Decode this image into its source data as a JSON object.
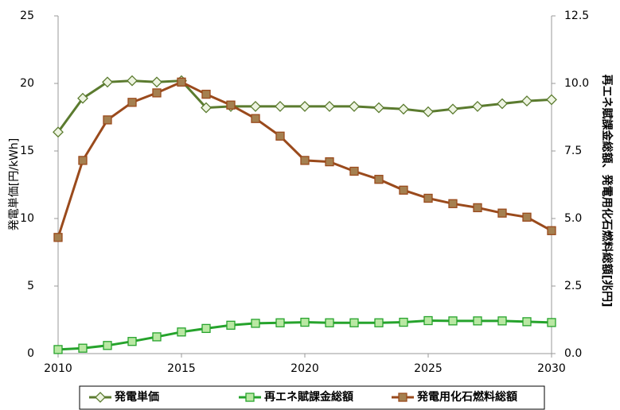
{
  "chart_data": {
    "type": "line",
    "x": [
      2010,
      2011,
      2012,
      2013,
      2014,
      2015,
      2016,
      2017,
      2018,
      2019,
      2020,
      2021,
      2022,
      2023,
      2024,
      2025,
      2026,
      2027,
      2028,
      2029,
      2030
    ],
    "xlim": [
      2010,
      2030
    ],
    "xticks": [
      2010,
      2015,
      2020,
      2025,
      2030
    ],
    "ylim": [
      0,
      25
    ],
    "yticks": [
      0,
      5,
      10,
      15,
      20,
      25
    ],
    "y2lim": [
      0,
      12.5
    ],
    "y2ticks": [
      {
        "value": 0,
        "label": "0.0"
      },
      2.5,
      {
        "value": 5,
        "label": "5.0"
      },
      7.5,
      {
        "value": 10,
        "label": "10.0"
      },
      12.5
    ],
    "ylabel": "発電単価[円/kWh]",
    "y2label": "再エネ賦課金総額、発電用化石燃料総額[兆円]",
    "legend": "bottom",
    "series": [
      {
        "name": "発電単価",
        "color": "#5b7b2f",
        "marker": "diamond",
        "marker_fill": "#eef4e2",
        "values": [
          16.4,
          18.9,
          20.1,
          20.2,
          20.1,
          20.2,
          18.2,
          18.3,
          18.3,
          18.3,
          18.3,
          18.3,
          18.3,
          18.2,
          18.1,
          17.9,
          18.1,
          18.3,
          18.5,
          18.7,
          18.8
        ]
      },
      {
        "name": "再エネ賦課金総額",
        "color": "#26a32c",
        "marker": "square",
        "marker_fill": "#b9e8a3",
        "axis": "y2",
        "values": [
          0.15,
          0.2,
          0.3,
          0.45,
          0.62,
          0.8,
          0.93,
          1.05,
          1.12,
          1.14,
          1.16,
          1.14,
          1.14,
          1.14,
          1.16,
          1.22,
          1.21,
          1.21,
          1.21,
          1.18,
          1.15
        ]
      },
      {
        "name": "発電用化石燃料総額",
        "color": "#9a4a1c",
        "marker": "square",
        "marker_fill": "#a58050",
        "axis": "y2",
        "values": [
          4.3,
          7.15,
          8.65,
          9.3,
          9.65,
          10.05,
          9.6,
          9.2,
          8.7,
          8.05,
          7.15,
          7.1,
          6.75,
          6.45,
          6.05,
          5.75,
          5.55,
          5.4,
          5.2,
          5.05,
          4.55
        ]
      }
    ]
  }
}
